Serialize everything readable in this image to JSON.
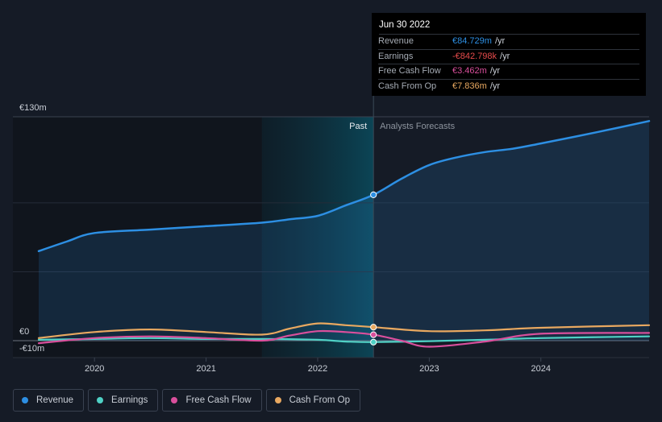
{
  "chart_data": {
    "type": "line",
    "y_unit": "€m",
    "ylim": [
      -10,
      130
    ],
    "y_ticks": [
      {
        "value": 130,
        "label": "€130m"
      },
      {
        "value": 0,
        "label": "€0"
      },
      {
        "value": -10,
        "label": "-€10m"
      }
    ],
    "x_range": [
      2019.5,
      2024.97
    ],
    "x_ticks": [
      {
        "value": 2020,
        "label": "2020"
      },
      {
        "value": 2021,
        "label": "2021"
      },
      {
        "value": 2022,
        "label": "2022"
      },
      {
        "value": 2023,
        "label": "2023"
      },
      {
        "value": 2024,
        "label": "2024"
      }
    ],
    "highlight_start": 2021.5,
    "divider_x": 2022.5,
    "region_labels": {
      "past": "Past",
      "forecast": "Analysts Forecasts"
    },
    "series": [
      {
        "name": "Revenue",
        "color": "#2d8fe3",
        "fill": true,
        "points": [
          [
            2019.5,
            52
          ],
          [
            2019.75,
            57.5
          ],
          [
            2020,
            62.5
          ],
          [
            2020.5,
            64.5
          ],
          [
            2021,
            66.5
          ],
          [
            2021.5,
            68.5
          ],
          [
            2021.75,
            70.5
          ],
          [
            2022,
            72.5
          ],
          [
            2022.25,
            78.5
          ],
          [
            2022.5,
            84.7
          ],
          [
            2022.75,
            94
          ],
          [
            2023,
            102
          ],
          [
            2023.25,
            106.5
          ],
          [
            2023.5,
            109.5
          ],
          [
            2023.75,
            111.5
          ],
          [
            2024,
            114.5
          ],
          [
            2024.5,
            121
          ],
          [
            2024.97,
            127.5
          ]
        ]
      },
      {
        "name": "Earnings",
        "color": "#4fd1c5",
        "points": [
          [
            2019.5,
            0.5
          ],
          [
            2020,
            1
          ],
          [
            2020.5,
            1.5
          ],
          [
            2021,
            1
          ],
          [
            2021.5,
            1
          ],
          [
            2022,
            0.5
          ],
          [
            2022.25,
            -0.5
          ],
          [
            2022.5,
            -0.84
          ],
          [
            2023,
            -0.3
          ],
          [
            2023.5,
            0.5
          ],
          [
            2024,
            1.5
          ],
          [
            2024.97,
            2.5
          ]
        ]
      },
      {
        "name": "Free Cash Flow",
        "color": "#d94f9c",
        "points": [
          [
            2019.5,
            -1.5
          ],
          [
            2020,
            1.5
          ],
          [
            2020.5,
            2.5
          ],
          [
            2021,
            1.5
          ],
          [
            2021.5,
            0
          ],
          [
            2021.75,
            3
          ],
          [
            2022,
            5.5
          ],
          [
            2022.25,
            5
          ],
          [
            2022.5,
            3.46
          ],
          [
            2022.75,
            0
          ],
          [
            2023,
            -3.5
          ],
          [
            2023.5,
            -0.5
          ],
          [
            2024,
            4
          ],
          [
            2024.97,
            4.5
          ]
        ]
      },
      {
        "name": "Cash From Op",
        "color": "#e8a860",
        "points": [
          [
            2019.5,
            1.5
          ],
          [
            2020,
            5
          ],
          [
            2020.5,
            6.5
          ],
          [
            2021,
            5
          ],
          [
            2021.5,
            3.5
          ],
          [
            2021.75,
            7
          ],
          [
            2022,
            10
          ],
          [
            2022.25,
            9
          ],
          [
            2022.5,
            7.84
          ],
          [
            2023,
            5.5
          ],
          [
            2023.5,
            6
          ],
          [
            2024,
            7.5
          ],
          [
            2024.97,
            9
          ]
        ]
      }
    ],
    "markers_at": 2022.5
  },
  "tooltip": {
    "title": "Jun 30 2022",
    "rows": [
      {
        "label": "Revenue",
        "value": "€84.729m",
        "unit": "/yr",
        "color": "#2d8fe3"
      },
      {
        "label": "Earnings",
        "value": "-€842.798k",
        "unit": "/yr",
        "color": "#e64b4b"
      },
      {
        "label": "Free Cash Flow",
        "value": "€3.462m",
        "unit": "/yr",
        "color": "#d94f9c"
      },
      {
        "label": "Cash From Op",
        "value": "€7.836m",
        "unit": "/yr",
        "color": "#e8a860"
      }
    ]
  },
  "legend": [
    {
      "label": "Revenue",
      "color": "#2d8fe3"
    },
    {
      "label": "Earnings",
      "color": "#4fd1c5"
    },
    {
      "label": "Free Cash Flow",
      "color": "#d94f9c"
    },
    {
      "label": "Cash From Op",
      "color": "#e8a860"
    }
  ]
}
